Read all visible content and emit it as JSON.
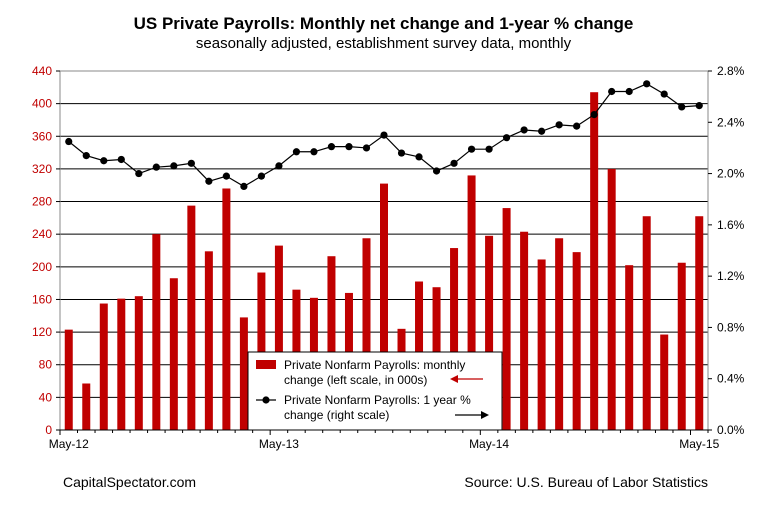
{
  "chart_data": {
    "type": "bar+line",
    "title": "US Private Payrolls: Monthly net change and 1-year % change",
    "subtitle": "seasonally adjusted, establishment survey data, monthly",
    "x_tick_labels": [
      "May-12",
      "May-13",
      "May-14",
      "May-15"
    ],
    "left_axis": {
      "ticks": [
        "0",
        "40",
        "80",
        "120",
        "160",
        "200",
        "240",
        "280",
        "320",
        "360",
        "400",
        "440"
      ],
      "ylim": [
        0,
        440
      ],
      "color": "#c00000"
    },
    "right_axis": {
      "ticks": [
        "0.0%",
        "0.4%",
        "0.8%",
        "1.2%",
        "1.6%",
        "2.0%",
        "2.4%",
        "2.8%"
      ],
      "ylim": [
        0,
        2.8
      ]
    },
    "grid": "horizontal",
    "legend": {
      "position": "lower-center",
      "bar_label": [
        "Private Nonfarm Payrolls: monthly",
        "change (left scale, in 000s)"
      ],
      "line_label": [
        "Private Nonfarm Payrolls:  1 year %",
        "change (right scale)"
      ]
    },
    "series": [
      {
        "name": "Private Nonfarm Payrolls: monthly change (left scale, in 000s)",
        "type": "bar",
        "color": "#c00000",
        "values": [
          123,
          57,
          155,
          161,
          164,
          240,
          186,
          275,
          219,
          296,
          138,
          193,
          226,
          172,
          162,
          213,
          168,
          235,
          302,
          124,
          182,
          175,
          223,
          312,
          238,
          272,
          243,
          209,
          235,
          218,
          414,
          320,
          202,
          262,
          117,
          205,
          262
        ]
      },
      {
        "name": "Private Nonfarm Payrolls: 1 year % change (right scale)",
        "type": "line",
        "color": "#000000",
        "values": [
          2.25,
          2.14,
          2.1,
          2.11,
          2.0,
          2.05,
          2.06,
          2.08,
          1.94,
          1.98,
          1.9,
          1.98,
          2.06,
          2.17,
          2.17,
          2.21,
          2.21,
          2.2,
          2.3,
          2.16,
          2.13,
          2.02,
          2.08,
          2.19,
          2.19,
          2.28,
          2.34,
          2.33,
          2.38,
          2.37,
          2.46,
          2.64,
          2.64,
          2.7,
          2.62,
          2.52,
          2.53
        ]
      }
    ]
  },
  "footer": {
    "left": "CapitalSpectator.com",
    "right": "Source: U.S. Bureau of Labor Statistics"
  }
}
